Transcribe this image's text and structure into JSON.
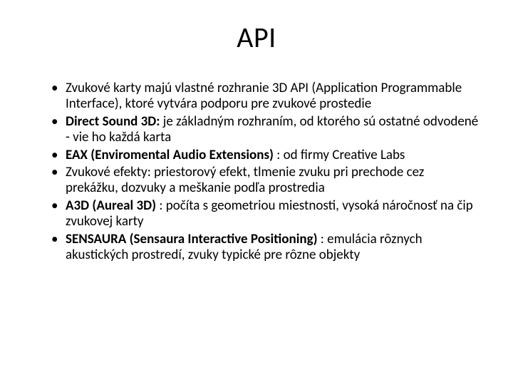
{
  "title": "API",
  "bullets": [
    {
      "pre": "",
      "b": "",
      "post": "Zvukové karty majú vlastné rozhranie 3D API (Application Programmable Interface), ktoré vytvára podporu pre zvukové prostedie"
    },
    {
      "pre": "",
      "b": "Direct Sound 3D:",
      "post": " je základným rozhraním, od ktorého sú ostatné odvodené - vie ho každá karta"
    },
    {
      "pre": "",
      "b": "EAX (Enviromental Audio Extensions)",
      "post": " : od firmy Creative Labs"
    },
    {
      "pre": "",
      "b": "",
      "post": "Zvukové efekty: priestorový efekt, tlmenie zvuku pri prechode cez prekážku, dozvuky a meškanie podľa prostredia"
    },
    {
      "pre": "",
      "b": "A3D (Aureal 3D)",
      "post": " : počíta s geometriou miestnosti, vysoká náročnosť na čip zvukovej karty"
    },
    {
      "pre": "",
      "b": "SENSAURA (Sensaura Interactive Positioning)",
      "post": " : emulácia rôznych akustických prostredí, zvuky typické pre rôzne objekty"
    }
  ]
}
